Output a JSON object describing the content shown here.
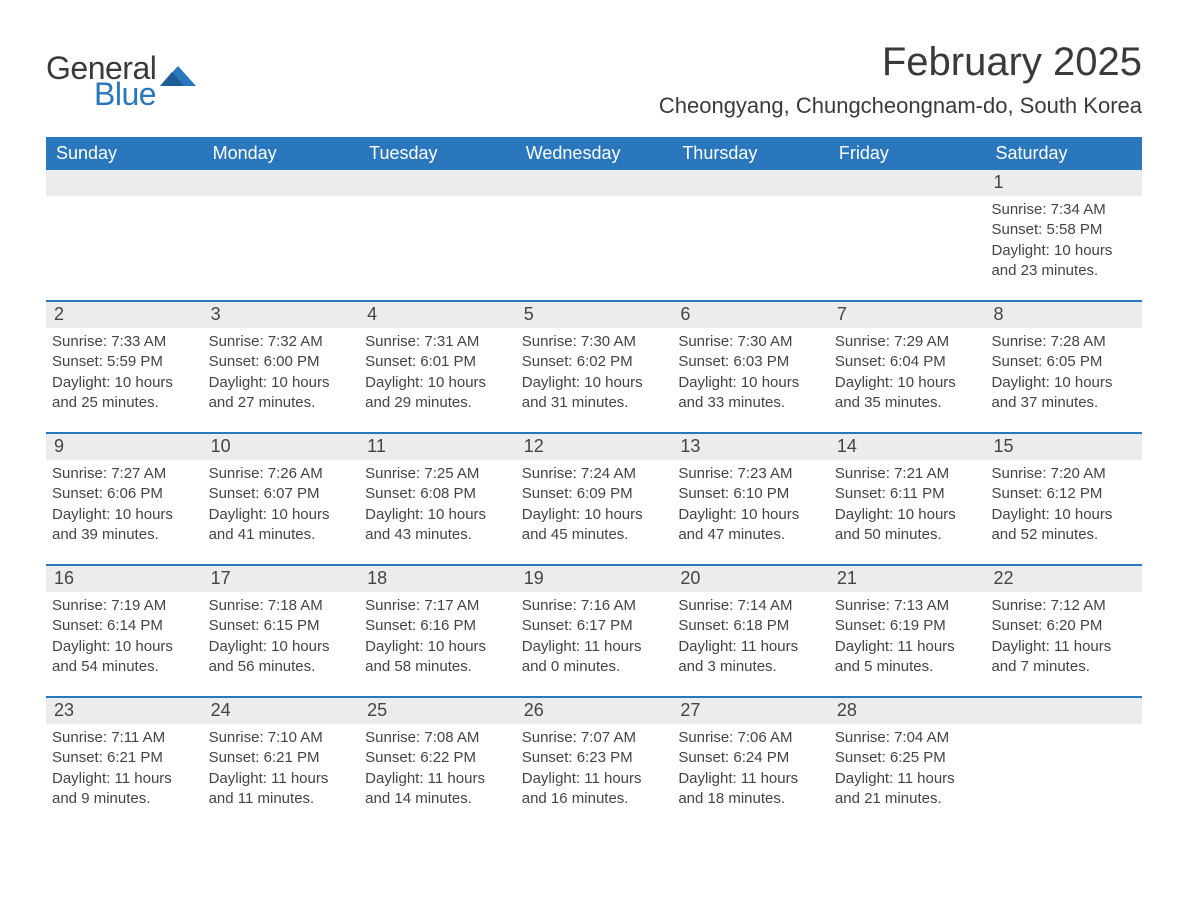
{
  "brand": {
    "word1": "General",
    "word2": "Blue",
    "mark_color": "#2a77bd"
  },
  "title": "February 2025",
  "location": "Cheongyang, Chungcheongnam-do, South Korea",
  "colors": {
    "header_bg": "#2a77bd",
    "header_fg": "#ffffff",
    "daynum_bg": "#ececec",
    "text": "#444444",
    "divider": "#2a77bd"
  },
  "typography": {
    "title_fontsize": 40,
    "location_fontsize": 22,
    "weekday_fontsize": 18,
    "daynum_fontsize": 18,
    "body_fontsize": 15
  },
  "weekdays": [
    "Sunday",
    "Monday",
    "Tuesday",
    "Wednesday",
    "Thursday",
    "Friday",
    "Saturday"
  ],
  "weeks": [
    [
      {
        "empty": true
      },
      {
        "empty": true
      },
      {
        "empty": true
      },
      {
        "empty": true
      },
      {
        "empty": true
      },
      {
        "empty": true
      },
      {
        "day": "1",
        "sunrise": "Sunrise: 7:34 AM",
        "sunset": "Sunset: 5:58 PM",
        "daylight1": "Daylight: 10 hours",
        "daylight2": "and 23 minutes."
      }
    ],
    [
      {
        "day": "2",
        "sunrise": "Sunrise: 7:33 AM",
        "sunset": "Sunset: 5:59 PM",
        "daylight1": "Daylight: 10 hours",
        "daylight2": "and 25 minutes."
      },
      {
        "day": "3",
        "sunrise": "Sunrise: 7:32 AM",
        "sunset": "Sunset: 6:00 PM",
        "daylight1": "Daylight: 10 hours",
        "daylight2": "and 27 minutes."
      },
      {
        "day": "4",
        "sunrise": "Sunrise: 7:31 AM",
        "sunset": "Sunset: 6:01 PM",
        "daylight1": "Daylight: 10 hours",
        "daylight2": "and 29 minutes."
      },
      {
        "day": "5",
        "sunrise": "Sunrise: 7:30 AM",
        "sunset": "Sunset: 6:02 PM",
        "daylight1": "Daylight: 10 hours",
        "daylight2": "and 31 minutes."
      },
      {
        "day": "6",
        "sunrise": "Sunrise: 7:30 AM",
        "sunset": "Sunset: 6:03 PM",
        "daylight1": "Daylight: 10 hours",
        "daylight2": "and 33 minutes."
      },
      {
        "day": "7",
        "sunrise": "Sunrise: 7:29 AM",
        "sunset": "Sunset: 6:04 PM",
        "daylight1": "Daylight: 10 hours",
        "daylight2": "and 35 minutes."
      },
      {
        "day": "8",
        "sunrise": "Sunrise: 7:28 AM",
        "sunset": "Sunset: 6:05 PM",
        "daylight1": "Daylight: 10 hours",
        "daylight2": "and 37 minutes."
      }
    ],
    [
      {
        "day": "9",
        "sunrise": "Sunrise: 7:27 AM",
        "sunset": "Sunset: 6:06 PM",
        "daylight1": "Daylight: 10 hours",
        "daylight2": "and 39 minutes."
      },
      {
        "day": "10",
        "sunrise": "Sunrise: 7:26 AM",
        "sunset": "Sunset: 6:07 PM",
        "daylight1": "Daylight: 10 hours",
        "daylight2": "and 41 minutes."
      },
      {
        "day": "11",
        "sunrise": "Sunrise: 7:25 AM",
        "sunset": "Sunset: 6:08 PM",
        "daylight1": "Daylight: 10 hours",
        "daylight2": "and 43 minutes."
      },
      {
        "day": "12",
        "sunrise": "Sunrise: 7:24 AM",
        "sunset": "Sunset: 6:09 PM",
        "daylight1": "Daylight: 10 hours",
        "daylight2": "and 45 minutes."
      },
      {
        "day": "13",
        "sunrise": "Sunrise: 7:23 AM",
        "sunset": "Sunset: 6:10 PM",
        "daylight1": "Daylight: 10 hours",
        "daylight2": "and 47 minutes."
      },
      {
        "day": "14",
        "sunrise": "Sunrise: 7:21 AM",
        "sunset": "Sunset: 6:11 PM",
        "daylight1": "Daylight: 10 hours",
        "daylight2": "and 50 minutes."
      },
      {
        "day": "15",
        "sunrise": "Sunrise: 7:20 AM",
        "sunset": "Sunset: 6:12 PM",
        "daylight1": "Daylight: 10 hours",
        "daylight2": "and 52 minutes."
      }
    ],
    [
      {
        "day": "16",
        "sunrise": "Sunrise: 7:19 AM",
        "sunset": "Sunset: 6:14 PM",
        "daylight1": "Daylight: 10 hours",
        "daylight2": "and 54 minutes."
      },
      {
        "day": "17",
        "sunrise": "Sunrise: 7:18 AM",
        "sunset": "Sunset: 6:15 PM",
        "daylight1": "Daylight: 10 hours",
        "daylight2": "and 56 minutes."
      },
      {
        "day": "18",
        "sunrise": "Sunrise: 7:17 AM",
        "sunset": "Sunset: 6:16 PM",
        "daylight1": "Daylight: 10 hours",
        "daylight2": "and 58 minutes."
      },
      {
        "day": "19",
        "sunrise": "Sunrise: 7:16 AM",
        "sunset": "Sunset: 6:17 PM",
        "daylight1": "Daylight: 11 hours",
        "daylight2": "and 0 minutes."
      },
      {
        "day": "20",
        "sunrise": "Sunrise: 7:14 AM",
        "sunset": "Sunset: 6:18 PM",
        "daylight1": "Daylight: 11 hours",
        "daylight2": "and 3 minutes."
      },
      {
        "day": "21",
        "sunrise": "Sunrise: 7:13 AM",
        "sunset": "Sunset: 6:19 PM",
        "daylight1": "Daylight: 11 hours",
        "daylight2": "and 5 minutes."
      },
      {
        "day": "22",
        "sunrise": "Sunrise: 7:12 AM",
        "sunset": "Sunset: 6:20 PM",
        "daylight1": "Daylight: 11 hours",
        "daylight2": "and 7 minutes."
      }
    ],
    [
      {
        "day": "23",
        "sunrise": "Sunrise: 7:11 AM",
        "sunset": "Sunset: 6:21 PM",
        "daylight1": "Daylight: 11 hours",
        "daylight2": "and 9 minutes."
      },
      {
        "day": "24",
        "sunrise": "Sunrise: 7:10 AM",
        "sunset": "Sunset: 6:21 PM",
        "daylight1": "Daylight: 11 hours",
        "daylight2": "and 11 minutes."
      },
      {
        "day": "25",
        "sunrise": "Sunrise: 7:08 AM",
        "sunset": "Sunset: 6:22 PM",
        "daylight1": "Daylight: 11 hours",
        "daylight2": "and 14 minutes."
      },
      {
        "day": "26",
        "sunrise": "Sunrise: 7:07 AM",
        "sunset": "Sunset: 6:23 PM",
        "daylight1": "Daylight: 11 hours",
        "daylight2": "and 16 minutes."
      },
      {
        "day": "27",
        "sunrise": "Sunrise: 7:06 AM",
        "sunset": "Sunset: 6:24 PM",
        "daylight1": "Daylight: 11 hours",
        "daylight2": "and 18 minutes."
      },
      {
        "day": "28",
        "sunrise": "Sunrise: 7:04 AM",
        "sunset": "Sunset: 6:25 PM",
        "daylight1": "Daylight: 11 hours",
        "daylight2": "and 21 minutes."
      },
      {
        "empty": true
      }
    ]
  ]
}
